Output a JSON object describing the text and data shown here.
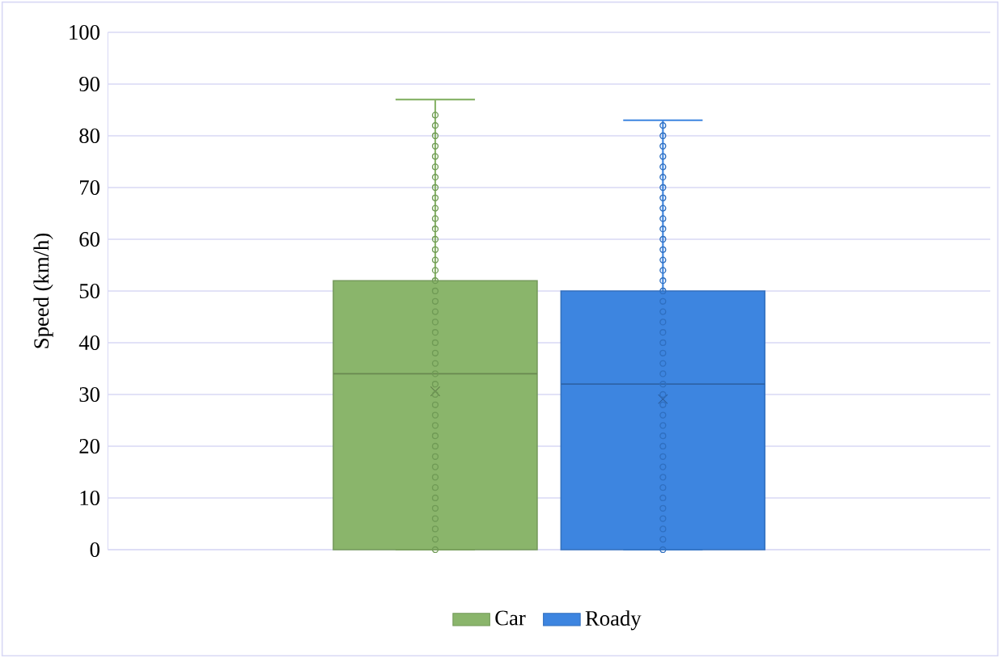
{
  "chart_data": {
    "type": "box",
    "ylabel": "Speed (km/h)",
    "categories": [
      null
    ],
    "ylim": [
      0,
      100
    ],
    "yticks": [
      0,
      10,
      20,
      30,
      40,
      50,
      60,
      70,
      80,
      90,
      100
    ],
    "grid": "y",
    "legend": "bottom",
    "marker": "circle",
    "series": [
      {
        "name": "Car",
        "color": "#8ab56b",
        "boxes": [
          {
            "low": 0,
            "q1": 0,
            "median": 34,
            "q3": 52,
            "high": 87,
            "mean": 30.6
          }
        ]
      },
      {
        "name": "Roady",
        "color": "#3d85e0",
        "boxes": [
          {
            "low": 0,
            "q1": 0,
            "median": 32,
            "q3": 50,
            "high": 83,
            "mean": 29.1
          }
        ]
      },
      {
        "type": "scatter",
        "color": "#6f9a55",
        "x": [
          null,
          null,
          null,
          null,
          null,
          null,
          null,
          null,
          null,
          null,
          null,
          null,
          null,
          null,
          null,
          null,
          null,
          null,
          null,
          null,
          null,
          null,
          null,
          null,
          null,
          null,
          null,
          null,
          null,
          null,
          null,
          null,
          null,
          null,
          null,
          null,
          null,
          null,
          null,
          null,
          null,
          null,
          null
        ],
        "values": [
          0,
          2,
          4,
          6,
          8,
          10,
          12,
          14,
          16,
          18,
          20,
          22,
          24,
          26,
          28,
          30,
          32,
          34,
          36,
          38,
          40,
          42,
          44,
          46,
          48,
          50,
          52,
          54,
          56,
          58,
          60,
          62,
          64,
          66,
          68,
          70,
          72,
          74,
          76,
          78,
          80,
          82,
          84
        ]
      },
      {
        "type": "scatter",
        "color": "#2f6fc0",
        "x": [
          null,
          null,
          null,
          null,
          null,
          null,
          null,
          null,
          null,
          null,
          null,
          null,
          null,
          null,
          null,
          null,
          null,
          null,
          null,
          null,
          null,
          null,
          null,
          null,
          null,
          null,
          null,
          null,
          null,
          null,
          null,
          null,
          null,
          null,
          null,
          null,
          null,
          null,
          null,
          null,
          null,
          null
        ],
        "values": [
          0,
          2,
          4,
          6,
          8,
          10,
          12,
          14,
          16,
          18,
          20,
          22,
          24,
          26,
          28,
          30,
          32,
          34,
          36,
          38,
          40,
          42,
          44,
          46,
          48,
          50,
          52,
          54,
          56,
          58,
          60,
          62,
          64,
          66,
          68,
          70,
          72,
          74,
          76,
          78,
          80,
          82
        ]
      }
    ]
  }
}
